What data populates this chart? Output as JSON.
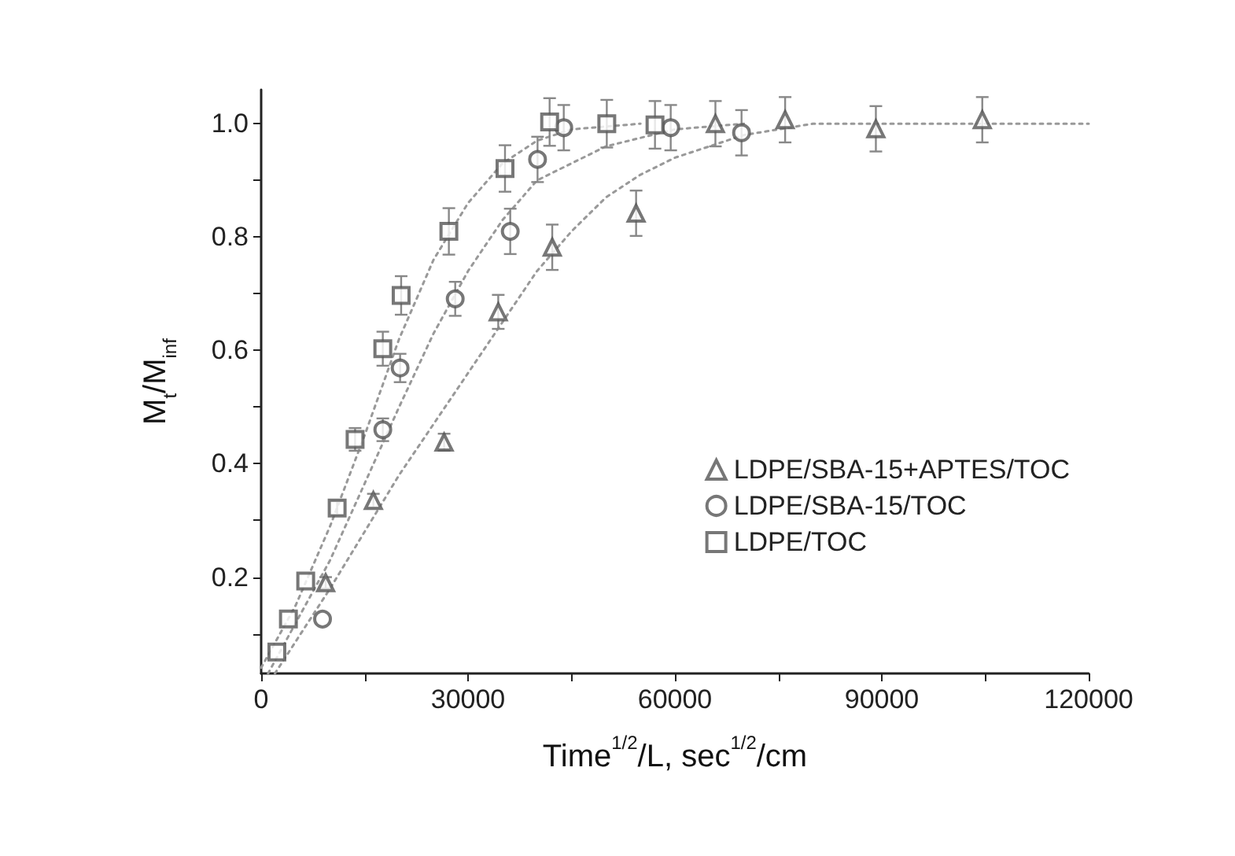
{
  "chart_data": {
    "type": "scatter",
    "xlabel": "Time$^{1/2}$/L, sec$^{1/2}$/cm",
    "ylabel": "M$_{t}$/M$_{inf}$",
    "xlim": [
      0,
      120000
    ],
    "ylim": [
      0.03,
      1.06
    ],
    "xticks": [
      0,
      {
        "value": 15000,
        "label": null
      },
      30000,
      {
        "value": 45000,
        "label": null
      },
      60000,
      {
        "value": 75000,
        "label": null
      },
      90000,
      {
        "value": 105000,
        "label": null
      },
      120000
    ],
    "yticks": [
      {
        "value": 0.1,
        "label": null
      },
      {
        "value": 0.2,
        "label": "0.2"
      },
      {
        "value": 0.3,
        "label": null
      },
      {
        "value": 0.4,
        "label": "0.4"
      },
      {
        "value": 0.5,
        "label": null
      },
      {
        "value": 0.6,
        "label": "0.6"
      },
      {
        "value": 0.7,
        "label": null
      },
      {
        "value": 0.8,
        "label": "0.8"
      },
      {
        "value": 0.9,
        "label": null
      },
      {
        "value": 1.0,
        "label": "1.0"
      }
    ],
    "grid": false,
    "legend": "bottom right",
    "series": [
      {
        "name": "LDPE/SBA-15+APTES/TOC",
        "color": "#555555",
        "marker": "triangle",
        "x": [
          9350,
          16270,
          26530,
          34380,
          42210,
          54370,
          65870,
          75980,
          89140,
          104570
        ],
        "values": [
          0.19,
          0.335,
          0.438,
          0.668,
          0.782,
          0.842,
          1.0,
          1.007,
          0.991,
          1.007
        ],
        "errors": [
          0.01,
          0.012,
          0.015,
          0.03,
          0.04,
          0.04,
          0.04,
          0.04,
          0.04,
          0.04
        ]
      },
      {
        "name": "LDPE/SBA-15/TOC",
        "color": "#555555",
        "marker": "circle",
        "x": [
          8900,
          17640,
          20150,
          28140,
          36120,
          40080,
          43880,
          59390,
          69660
        ],
        "values": [
          0.126,
          0.46,
          0.569,
          0.691,
          0.81,
          0.937,
          0.993,
          0.993,
          0.984
        ],
        "errors": [
          null,
          0.02,
          0.025,
          0.03,
          0.04,
          0.04,
          0.04,
          0.04,
          0.04
        ]
      },
      {
        "name": "LDPE/TOC",
        "color": "#555555",
        "marker": "square",
        "x": [
          2280,
          3950,
          6460,
          11020,
          13620,
          17640,
          20300,
          27220,
          35360,
          41830,
          50120,
          57110
        ],
        "values": [
          0.068,
          0.126,
          0.193,
          0.322,
          0.443,
          0.603,
          0.697,
          0.81,
          0.921,
          1.003,
          1.0,
          0.998
        ],
        "errors": [
          null,
          null,
          null,
          0.012,
          0.02,
          0.03,
          0.034,
          0.041,
          0.041,
          0.042,
          0.042,
          0.042
        ]
      },
      {
        "type": "line",
        "color": "#999999",
        "marker": "none",
        "line_style": "dotted",
        "x": [
          2000,
          10000,
          20000,
          30000,
          35000,
          40000,
          45000,
          50000,
          55000,
          60000,
          70000,
          80000,
          120000
        ],
        "values": [
          0.03,
          0.18,
          0.38,
          0.56,
          0.65,
          0.74,
          0.81,
          0.87,
          0.91,
          0.94,
          0.98,
          1.0,
          1.0
        ]
      },
      {
        "type": "line",
        "color": "#999999",
        "marker": "none",
        "line_style": "dotted",
        "x": [
          1000,
          10000,
          20000,
          25000,
          30000,
          35000,
          40000,
          50000,
          60000,
          70000
        ],
        "values": [
          0.03,
          0.23,
          0.5,
          0.63,
          0.74,
          0.83,
          0.9,
          0.96,
          0.99,
          1.0
        ]
      },
      {
        "type": "line",
        "color": "#999999",
        "marker": "none",
        "line_style": "dotted",
        "x": [
          0,
          5000,
          10000,
          15000,
          20000,
          25000,
          30000,
          35000,
          40000,
          45000,
          55000
        ],
        "values": [
          0.04,
          0.15,
          0.29,
          0.45,
          0.62,
          0.76,
          0.86,
          0.93,
          0.97,
          0.99,
          1.0
        ]
      }
    ]
  }
}
